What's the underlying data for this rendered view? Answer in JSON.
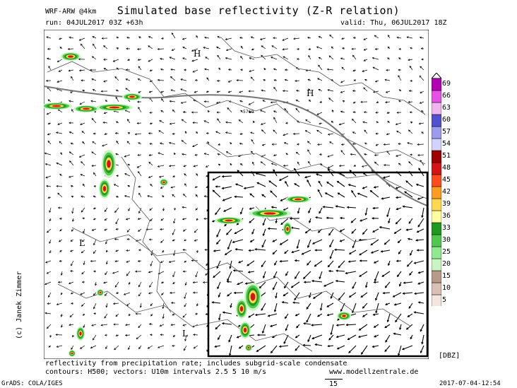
{
  "header": {
    "title": "Simulated base reflectivity (Z-R relation)",
    "model": "WRF-ARW @4km",
    "run": "run: 04JUL2017 03Z +63h",
    "valid": "valid: Thu, 06JUL2017 18Z"
  },
  "map": {
    "pressure_labels": [
      "H",
      "H",
      "L",
      "L"
    ],
    "contour_label": "5760"
  },
  "colorbar": {
    "unit": "[DBZ]",
    "levels": [
      5,
      10,
      15,
      20,
      25,
      30,
      33,
      36,
      39,
      42,
      45,
      48,
      51,
      54,
      57,
      60,
      63,
      66,
      69
    ],
    "colors": [
      "#f2e6df",
      "#d8c0b4",
      "#b89a8a",
      "#c8f5c0",
      "#90e890",
      "#50c850",
      "#1e9b1e",
      "#ffffa0",
      "#ffd750",
      "#ff9b1e",
      "#ff4b1e",
      "#d71414",
      "#a00000",
      "#d2d2ff",
      "#9b9bf0",
      "#5050d2",
      "#f0b4f0",
      "#e650e6",
      "#b400b4"
    ]
  },
  "footer": {
    "note1": "reflectivity from precipitation rate; includes subgrid-scale condensate",
    "note2": "contours: H500; vectors: U10m intervals 2.5 5 10 m/s",
    "website": "www.modellzentrale.de",
    "credit": "(c) Janek Zimmer",
    "grads": "GrADS: COLA/IGES",
    "timestamp": "2017-07-04-12:54",
    "vector_ref": "15"
  }
}
